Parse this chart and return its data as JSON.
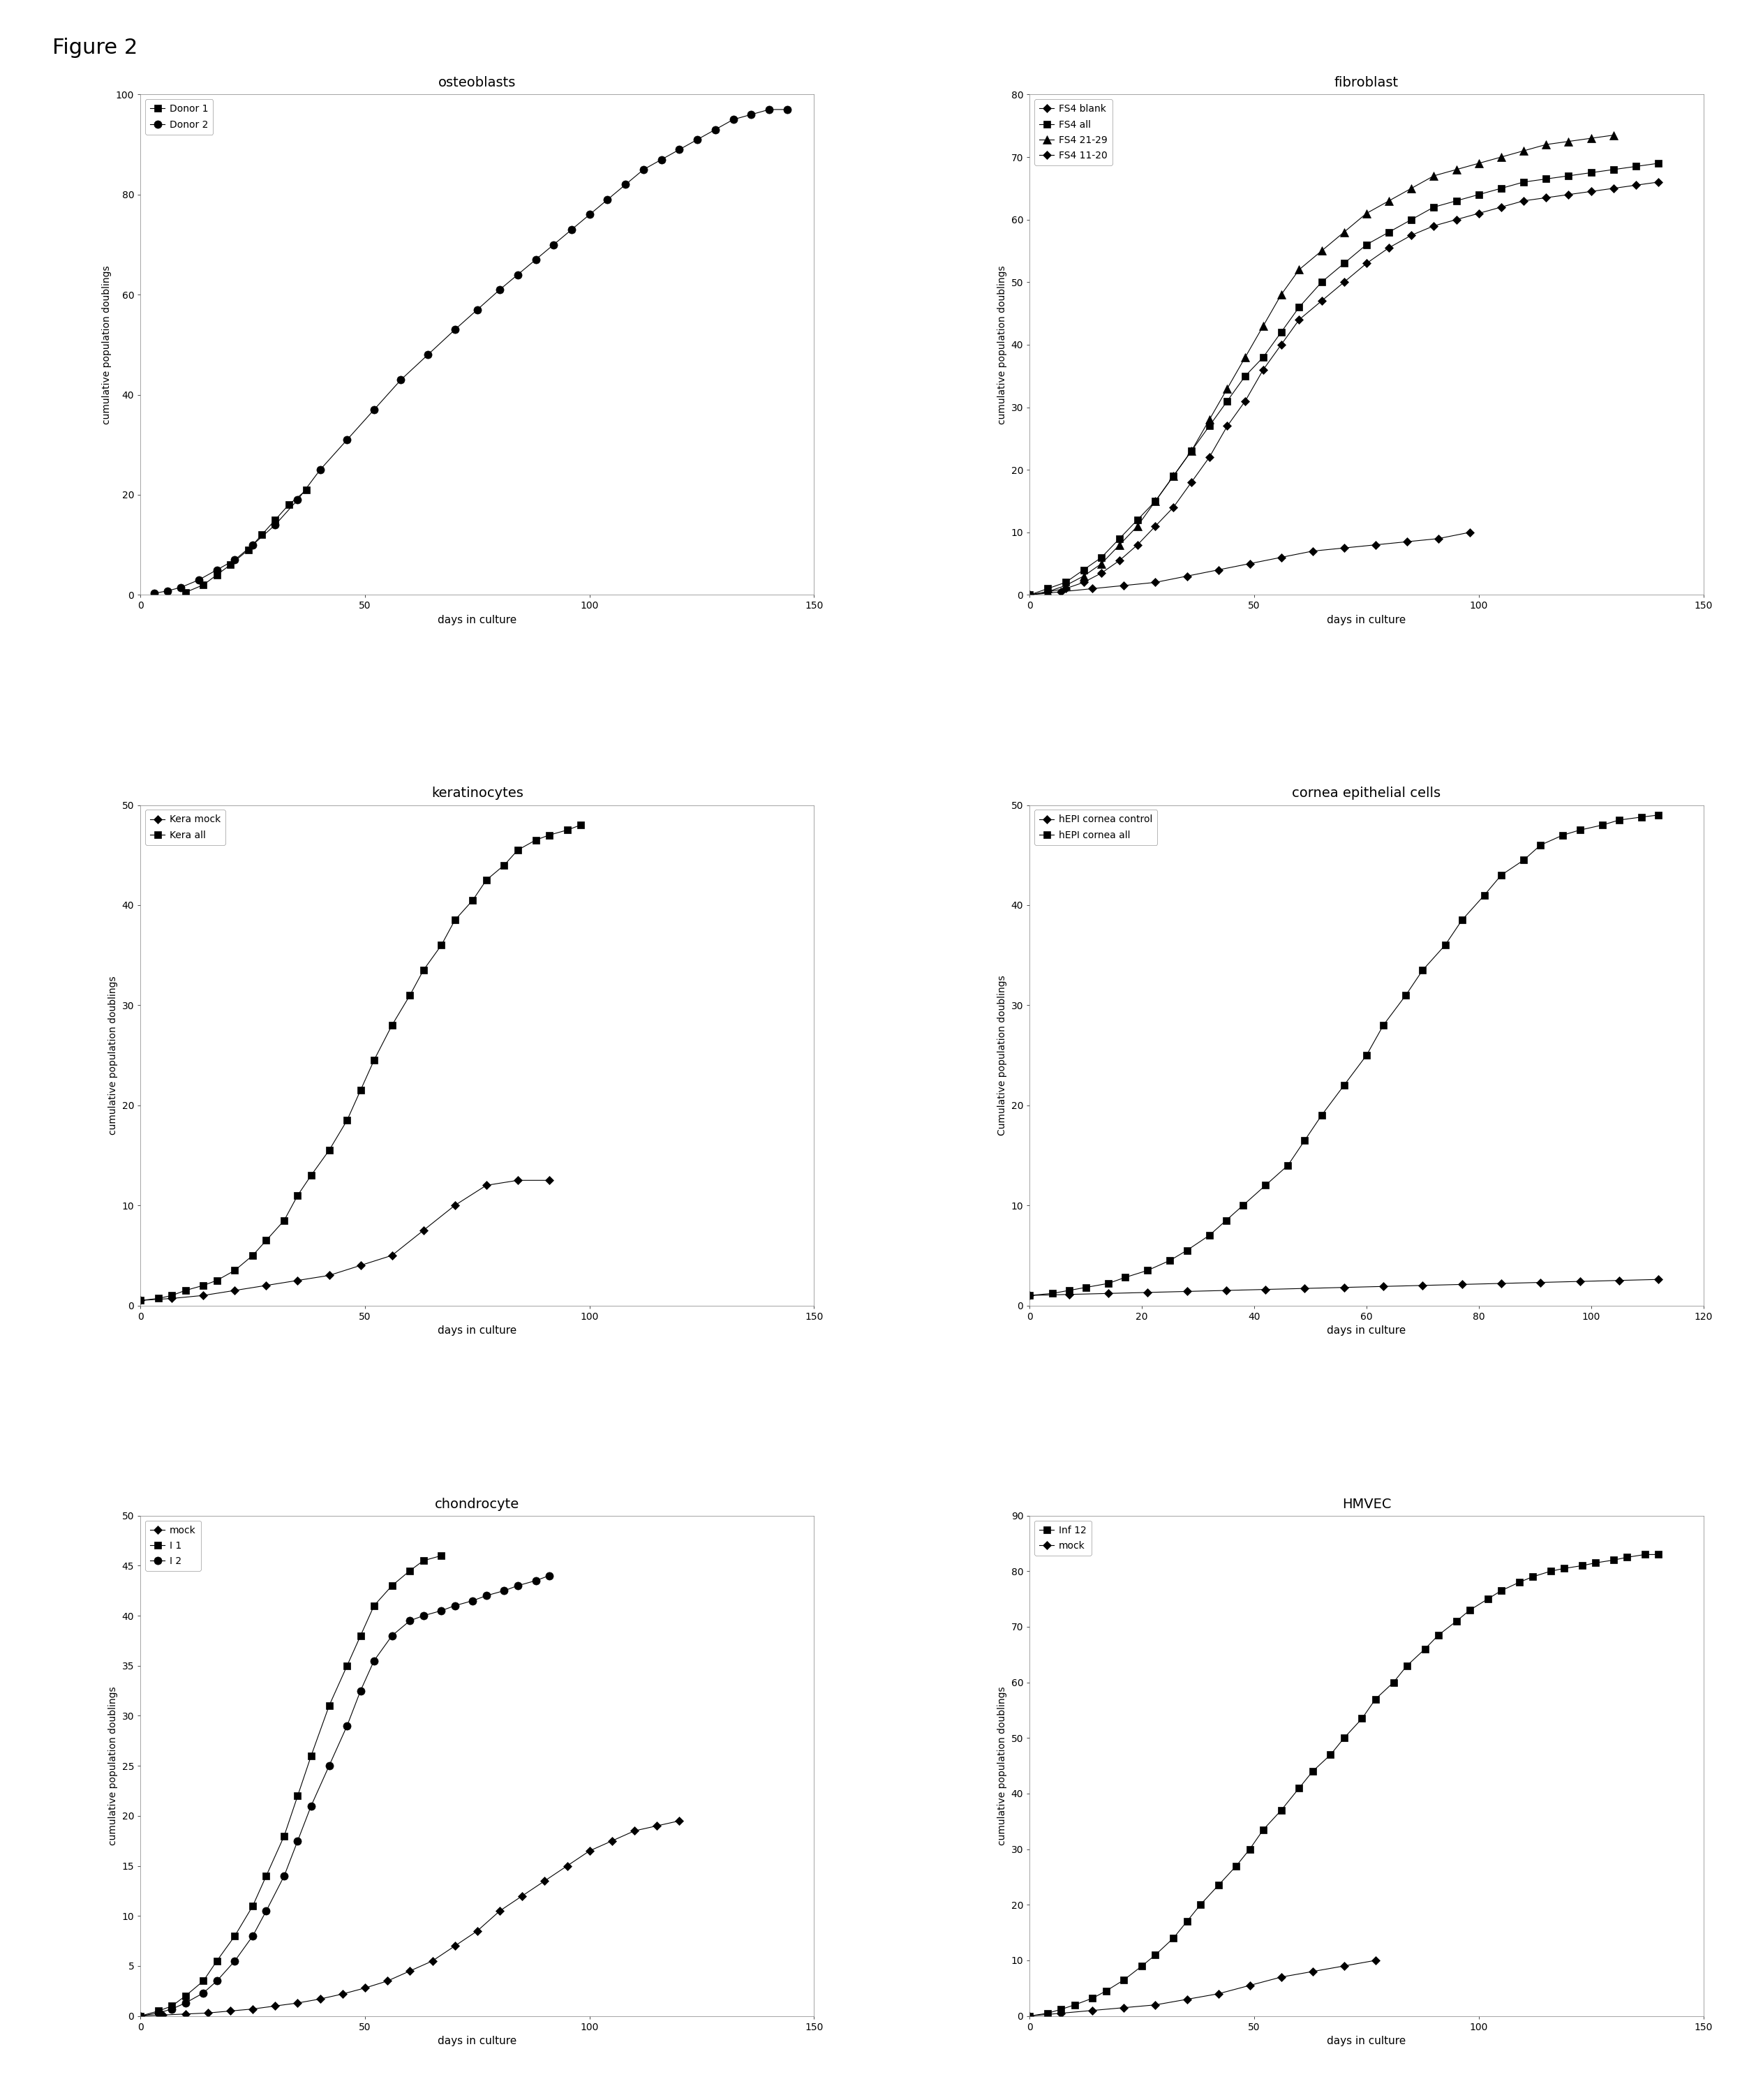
{
  "figure_title": "Figure 2",
  "plots": [
    {
      "title": "osteoblasts",
      "xlabel": "days in culture",
      "ylabel": "cumulative population doublings",
      "xlim": [
        0,
        150
      ],
      "ylim": [
        0,
        100
      ],
      "xticks": [
        0,
        50,
        100,
        150
      ],
      "yticks": [
        0,
        20,
        40,
        60,
        80,
        100
      ],
      "series": [
        {
          "label": "Donor 1",
          "marker": "s",
          "color": "black",
          "x": [
            10,
            14,
            17,
            20,
            24,
            27,
            30,
            33,
            37
          ],
          "y": [
            0.5,
            2,
            4,
            6,
            9,
            12,
            15,
            18,
            21
          ]
        },
        {
          "label": "Donor 2",
          "marker": "o",
          "color": "black",
          "x": [
            3,
            6,
            9,
            13,
            17,
            21,
            25,
            30,
            35,
            40,
            46,
            52,
            58,
            64,
            70,
            75,
            80,
            84,
            88,
            92,
            96,
            100,
            104,
            108,
            112,
            116,
            120,
            124,
            128,
            132,
            136,
            140,
            144
          ],
          "y": [
            0.3,
            0.8,
            1.5,
            3,
            5,
            7,
            10,
            14,
            19,
            25,
            31,
            37,
            43,
            48,
            53,
            57,
            61,
            64,
            67,
            70,
            73,
            76,
            79,
            82,
            85,
            87,
            89,
            91,
            93,
            95,
            96,
            97,
            97
          ]
        }
      ]
    },
    {
      "title": "fibroblast",
      "xlabel": "days in culture",
      "ylabel": "cumulative population doublings",
      "xlim": [
        0,
        150
      ],
      "ylim": [
        0,
        80
      ],
      "xticks": [
        0,
        50,
        100,
        150
      ],
      "yticks": [
        0,
        10,
        20,
        30,
        40,
        50,
        60,
        70,
        80
      ],
      "series": [
        {
          "label": "FS4 blank",
          "marker": "D",
          "color": "black",
          "x": [
            0,
            7,
            14,
            21,
            28,
            35,
            42,
            49,
            56,
            63,
            70,
            77,
            84,
            91,
            98
          ],
          "y": [
            0,
            0.5,
            1,
            1.5,
            2,
            3,
            4,
            5,
            6,
            7,
            7.5,
            8,
            8.5,
            9,
            10
          ]
        },
        {
          "label": "FS4 all",
          "marker": "s",
          "color": "black",
          "x": [
            0,
            4,
            8,
            12,
            16,
            20,
            24,
            28,
            32,
            36,
            40,
            44,
            48,
            52,
            56,
            60,
            65,
            70,
            75,
            80,
            85,
            90,
            95,
            100,
            105,
            110,
            115,
            120,
            125,
            130,
            135,
            140
          ],
          "y": [
            0,
            1,
            2,
            4,
            6,
            9,
            12,
            15,
            19,
            23,
            27,
            31,
            35,
            38,
            42,
            46,
            50,
            53,
            56,
            58,
            60,
            62,
            63,
            64,
            65,
            66,
            66.5,
            67,
            67.5,
            68,
            68.5,
            69
          ]
        },
        {
          "label": "FS4 21-29",
          "marker": "^",
          "color": "black",
          "x": [
            0,
            4,
            8,
            12,
            16,
            20,
            24,
            28,
            32,
            36,
            40,
            44,
            48,
            52,
            56,
            60,
            65,
            70,
            75,
            80,
            85,
            90,
            95,
            100,
            105,
            110,
            115,
            120,
            125,
            130
          ],
          "y": [
            0,
            0.5,
            1.5,
            3,
            5,
            8,
            11,
            15,
            19,
            23,
            28,
            33,
            38,
            43,
            48,
            52,
            55,
            58,
            61,
            63,
            65,
            67,
            68,
            69,
            70,
            71,
            72,
            72.5,
            73,
            73.5
          ]
        },
        {
          "label": "FS4 11-20",
          "marker": "D",
          "color": "black",
          "x": [
            0,
            4,
            8,
            12,
            16,
            20,
            24,
            28,
            32,
            36,
            40,
            44,
            48,
            52,
            56,
            60,
            65,
            70,
            75,
            80,
            85,
            90,
            95,
            100,
            105,
            110,
            115,
            120,
            125,
            130,
            135,
            140
          ],
          "y": [
            0,
            0.5,
            1,
            2,
            3.5,
            5.5,
            8,
            11,
            14,
            18,
            22,
            27,
            31,
            36,
            40,
            44,
            47,
            50,
            53,
            55.5,
            57.5,
            59,
            60,
            61,
            62,
            63,
            63.5,
            64,
            64.5,
            65,
            65.5,
            66
          ]
        }
      ]
    },
    {
      "title": "keratinocytes",
      "xlabel": "days in culture",
      "ylabel": "cumulative population doublings",
      "xlim": [
        0,
        150
      ],
      "ylim": [
        0,
        50
      ],
      "xticks": [
        0,
        50,
        100,
        150
      ],
      "yticks": [
        0,
        10,
        20,
        30,
        40,
        50
      ],
      "series": [
        {
          "label": "Kera mock",
          "marker": "D",
          "color": "black",
          "x": [
            0,
            7,
            14,
            21,
            28,
            35,
            42,
            49,
            56,
            63,
            70,
            77,
            84,
            91
          ],
          "y": [
            0.5,
            0.7,
            1,
            1.5,
            2,
            2.5,
            3,
            4,
            5,
            7.5,
            10,
            12,
            12.5,
            12.5
          ]
        },
        {
          "label": "Kera all",
          "marker": "s",
          "color": "black",
          "x": [
            0,
            4,
            7,
            10,
            14,
            17,
            21,
            25,
            28,
            32,
            35,
            38,
            42,
            46,
            49,
            52,
            56,
            60,
            63,
            67,
            70,
            74,
            77,
            81,
            84,
            88,
            91,
            95,
            98
          ],
          "y": [
            0.5,
            0.7,
            1,
            1.5,
            2,
            2.5,
            3.5,
            5,
            6.5,
            8.5,
            11,
            13,
            15.5,
            18.5,
            21.5,
            24.5,
            28,
            31,
            33.5,
            36,
            38.5,
            40.5,
            42.5,
            44,
            45.5,
            46.5,
            47,
            47.5,
            48
          ]
        }
      ]
    },
    {
      "title": "cornea epithelial cells",
      "xlabel": "days in culture",
      "ylabel": "Cumulative population doublings",
      "xlim": [
        0,
        120
      ],
      "ylim": [
        0,
        50
      ],
      "xticks": [
        0,
        20,
        40,
        60,
        80,
        100,
        120
      ],
      "yticks": [
        0,
        10,
        20,
        30,
        40,
        50
      ],
      "series": [
        {
          "label": "hEPI cornea control",
          "marker": "D",
          "color": "black",
          "x": [
            0,
            7,
            14,
            21,
            28,
            35,
            42,
            49,
            56,
            63,
            70,
            77,
            84,
            91,
            98,
            105,
            112
          ],
          "y": [
            1,
            1.1,
            1.2,
            1.3,
            1.4,
            1.5,
            1.6,
            1.7,
            1.8,
            1.9,
            2.0,
            2.1,
            2.2,
            2.3,
            2.4,
            2.5,
            2.6
          ]
        },
        {
          "label": "hEPI cornea all",
          "marker": "s",
          "color": "black",
          "x": [
            0,
            4,
            7,
            10,
            14,
            17,
            21,
            25,
            28,
            32,
            35,
            38,
            42,
            46,
            49,
            52,
            56,
            60,
            63,
            67,
            70,
            74,
            77,
            81,
            84,
            88,
            91,
            95,
            98,
            102,
            105,
            109,
            112
          ],
          "y": [
            1,
            1.2,
            1.5,
            1.8,
            2.2,
            2.8,
            3.5,
            4.5,
            5.5,
            7,
            8.5,
            10,
            12,
            14,
            16.5,
            19,
            22,
            25,
            28,
            31,
            33.5,
            36,
            38.5,
            41,
            43,
            44.5,
            46,
            47,
            47.5,
            48,
            48.5,
            48.8,
            49
          ]
        }
      ]
    },
    {
      "title": "chondrocyte",
      "xlabel": "days in culture",
      "ylabel": "cumulative population doublings",
      "xlim": [
        0,
        150
      ],
      "ylim": [
        0,
        50
      ],
      "xticks": [
        0,
        50,
        100,
        150
      ],
      "yticks": [
        0,
        5,
        10,
        15,
        20,
        25,
        30,
        35,
        40,
        45,
        50
      ],
      "series": [
        {
          "label": "mock",
          "marker": "D",
          "color": "black",
          "x": [
            0,
            5,
            10,
            15,
            20,
            25,
            30,
            35,
            40,
            45,
            50,
            55,
            60,
            65,
            70,
            75,
            80,
            85,
            90,
            95,
            100,
            105,
            110,
            115,
            120
          ],
          "y": [
            0,
            0.1,
            0.2,
            0.3,
            0.5,
            0.7,
            1,
            1.3,
            1.7,
            2.2,
            2.8,
            3.5,
            4.5,
            5.5,
            7,
            8.5,
            10.5,
            12,
            13.5,
            15,
            16.5,
            17.5,
            18.5,
            19,
            19.5
          ]
        },
        {
          "label": "I 1",
          "marker": "s",
          "color": "black",
          "x": [
            0,
            4,
            7,
            10,
            14,
            17,
            21,
            25,
            28,
            32,
            35,
            38,
            42,
            46,
            49,
            52,
            56,
            60,
            63,
            67
          ],
          "y": [
            0,
            0.5,
            1,
            2,
            3.5,
            5.5,
            8,
            11,
            14,
            18,
            22,
            26,
            31,
            35,
            38,
            41,
            43,
            44.5,
            45.5,
            46
          ]
        },
        {
          "label": "I 2",
          "marker": "o",
          "color": "black",
          "x": [
            0,
            4,
            7,
            10,
            14,
            17,
            21,
            25,
            28,
            32,
            35,
            38,
            42,
            46,
            49,
            52,
            56,
            60,
            63,
            67,
            70,
            74,
            77,
            81,
            84,
            88,
            91
          ],
          "y": [
            0,
            0.3,
            0.7,
            1.3,
            2.3,
            3.5,
            5.5,
            8,
            10.5,
            14,
            17.5,
            21,
            25,
            29,
            32.5,
            35.5,
            38,
            39.5,
            40,
            40.5,
            41,
            41.5,
            42,
            42.5,
            43,
            43.5,
            44
          ]
        }
      ]
    },
    {
      "title": "HMVEC",
      "xlabel": "days in culture",
      "ylabel": "cumulative population doublings",
      "xlim": [
        0,
        150
      ],
      "ylim": [
        0,
        90
      ],
      "xticks": [
        0,
        50,
        100,
        150
      ],
      "yticks": [
        0,
        10,
        20,
        30,
        40,
        50,
        60,
        70,
        80,
        90
      ],
      "series": [
        {
          "label": "Inf 12",
          "marker": "s",
          "color": "black",
          "x": [
            0,
            4,
            7,
            10,
            14,
            17,
            21,
            25,
            28,
            32,
            35,
            38,
            42,
            46,
            49,
            52,
            56,
            60,
            63,
            67,
            70,
            74,
            77,
            81,
            84,
            88,
            91,
            95,
            98,
            102,
            105,
            109,
            112,
            116,
            119,
            123,
            126,
            130,
            133,
            137,
            140
          ],
          "y": [
            0,
            0.5,
            1.2,
            2,
            3.2,
            4.5,
            6.5,
            9,
            11,
            14,
            17,
            20,
            23.5,
            27,
            30,
            33.5,
            37,
            41,
            44,
            47,
            50,
            53.5,
            57,
            60,
            63,
            66,
            68.5,
            71,
            73,
            75,
            76.5,
            78,
            79,
            80,
            80.5,
            81,
            81.5,
            82,
            82.5,
            83,
            83
          ]
        },
        {
          "label": "mock",
          "marker": "D",
          "color": "black",
          "x": [
            0,
            7,
            14,
            21,
            28,
            35,
            42,
            49,
            56,
            63,
            70,
            77
          ],
          "y": [
            0,
            0.5,
            1,
            1.5,
            2,
            3,
            4,
            5.5,
            7,
            8,
            9,
            10
          ]
        }
      ]
    }
  ]
}
